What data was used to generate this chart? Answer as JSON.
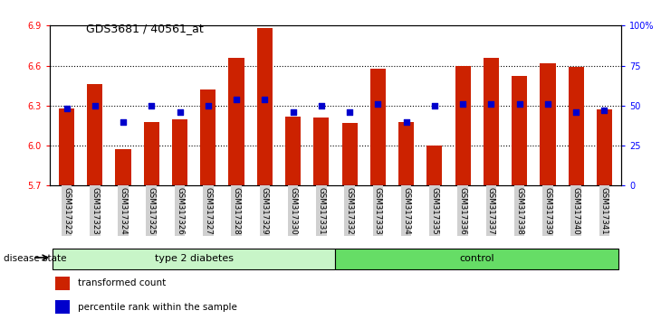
{
  "title": "GDS3681 / 40561_at",
  "samples": [
    "GSM317322",
    "GSM317323",
    "GSM317324",
    "GSM317325",
    "GSM317326",
    "GSM317327",
    "GSM317328",
    "GSM317329",
    "GSM317330",
    "GSM317331",
    "GSM317332",
    "GSM317333",
    "GSM317334",
    "GSM317335",
    "GSM317336",
    "GSM317337",
    "GSM317338",
    "GSM317339",
    "GSM317340",
    "GSM317341"
  ],
  "bar_values": [
    6.28,
    6.46,
    5.97,
    6.18,
    6.2,
    6.42,
    6.66,
    6.88,
    6.22,
    6.21,
    6.17,
    6.58,
    6.18,
    6.0,
    6.6,
    6.66,
    6.52,
    6.62,
    6.59,
    6.27
  ],
  "percentiles_pct": [
    48,
    50,
    40,
    50,
    46,
    50,
    54,
    54,
    46,
    50,
    46,
    51,
    40,
    50,
    51,
    51,
    51,
    51,
    46,
    47
  ],
  "groups": [
    {
      "label": "type 2 diabetes",
      "start": 0,
      "end": 10,
      "color": "#c8f5c8"
    },
    {
      "label": "control",
      "start": 10,
      "end": 20,
      "color": "#66dd66"
    }
  ],
  "disease_state_label": "disease state",
  "ylim_left": [
    5.7,
    6.9
  ],
  "ylim_right": [
    0,
    100
  ],
  "yticks_left": [
    5.7,
    6.0,
    6.3,
    6.6,
    6.9
  ],
  "yticks_right": [
    0,
    25,
    50,
    75,
    100
  ],
  "ytick_labels_right": [
    "0",
    "25",
    "50",
    "75",
    "100%"
  ],
  "grid_lines": [
    6.0,
    6.3,
    6.6
  ],
  "bar_color": "#cc2200",
  "dot_color": "#0000cc",
  "bar_width": 0.55
}
